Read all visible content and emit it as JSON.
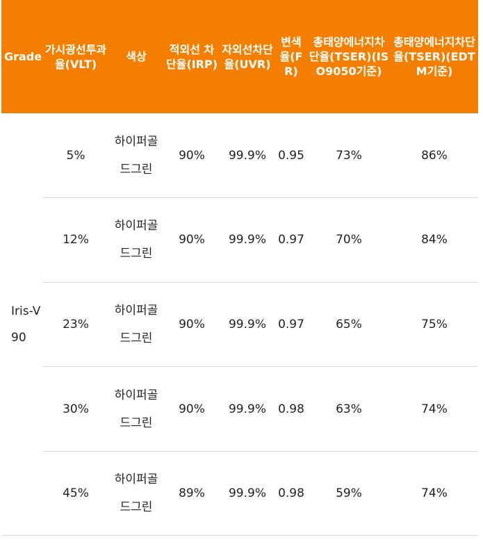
{
  "headers": {
    "grade": "Grade",
    "vlt": "가시광선투과율(VLT)",
    "color": "색상",
    "irp": "적외선 차단율(IRP)",
    "uvr": "자외선차단율(UVR)",
    "fr": "변색율(FR)",
    "tser_iso": "총태양에너지차단율(TSER)(ISO9050기준)",
    "tser_edtm": "총태양에너지차단율(TSER)(EDTM기준)"
  },
  "grade_value": "Iris-V90",
  "rows": [
    {
      "vlt": "5%",
      "color": "하이퍼골드그린",
      "irp": "90%",
      "uvr": "99.9%",
      "fr": "0.95",
      "tser_iso": "73%",
      "tser_edtm": "86%"
    },
    {
      "vlt": "12%",
      "color": "하이퍼골드그린",
      "irp": "90%",
      "uvr": "99.9%",
      "fr": "0.97",
      "tser_iso": "70%",
      "tser_edtm": "84%"
    },
    {
      "vlt": "23%",
      "color": "하이퍼골드그린",
      "irp": "90%",
      "uvr": "99.9%",
      "fr": "0.97",
      "tser_iso": "65%",
      "tser_edtm": "75%"
    },
    {
      "vlt": "30%",
      "color": "하이퍼골드그린",
      "irp": "90%",
      "uvr": "99.9%",
      "fr": "0.98",
      "tser_iso": "63%",
      "tser_edtm": "74%"
    },
    {
      "vlt": "45%",
      "color": "하이퍼골드그린",
      "irp": "89%",
      "uvr": "99.9%",
      "fr": "0.98",
      "tser_iso": "59%",
      "tser_edtm": "74%"
    }
  ],
  "theme": {
    "header_bg": "#f47e00",
    "header_text": "#ffffff",
    "row_divider": "#dcdcdc"
  }
}
